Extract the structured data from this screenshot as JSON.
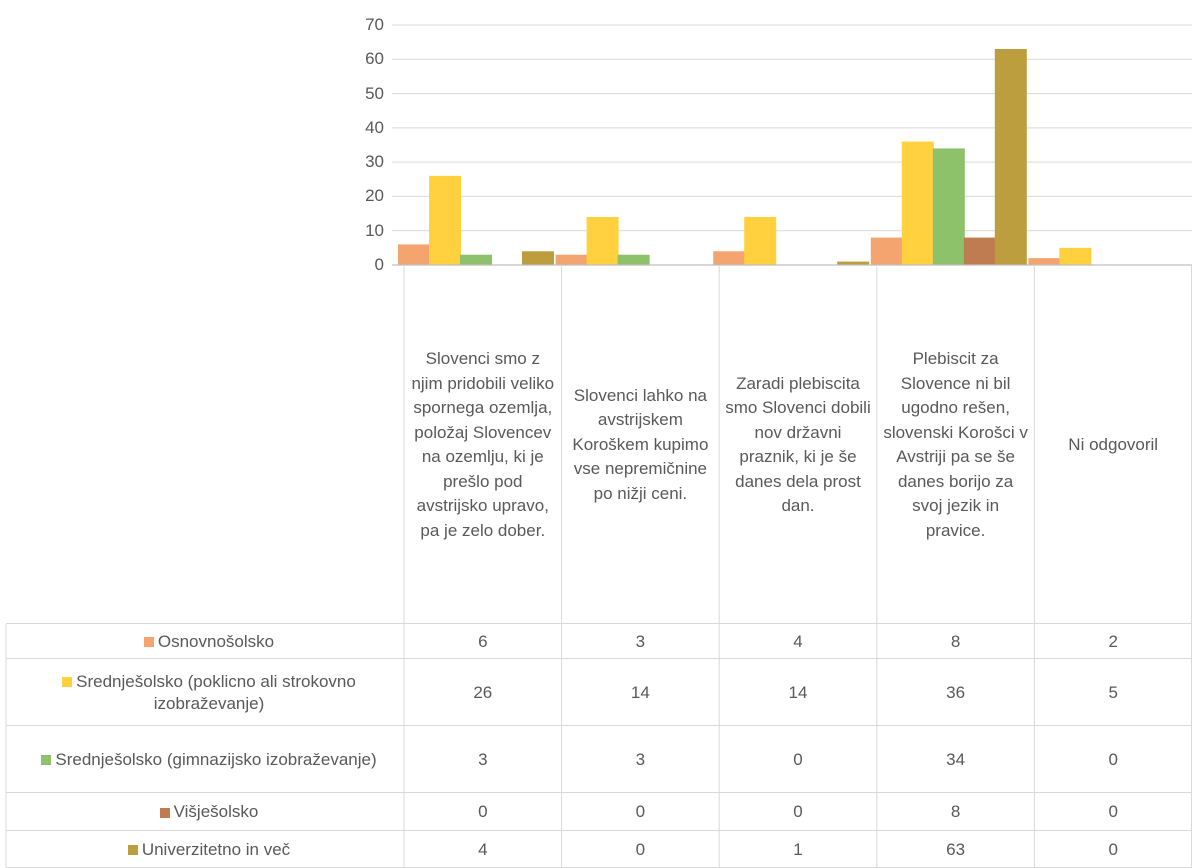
{
  "chart_data": {
    "type": "bar",
    "title": "",
    "xlabel": "",
    "ylabel": "",
    "ylim": [
      0,
      70
    ],
    "yticks": [
      0,
      10,
      20,
      30,
      40,
      50,
      60,
      70
    ],
    "grid": true,
    "legend": "table-left",
    "categories": [
      "Slovenci smo z njim pridobili veliko spornega ozemlja, položaj Slovencev na ozemlju, ki je prešlo pod avstrijsko upravo, pa je zelo dober.",
      "Slovenci lahko na avstrijskem Koroškem kupimo vse nepremičnine po nižji ceni.",
      "Zaradi plebiscita smo Slovenci dobili nov državni praznik, ki je še danes dela prost dan.",
      "Plebiscit za Slovence ni bil ugodno rešen, slovenski Korošci v Avstriji pa se še danes borijo za svoj jezik in pravice.",
      "Ni odgovoril"
    ],
    "series": [
      {
        "name": "Osnovnošolsko",
        "color": "#F4A46E",
        "values": [
          6,
          3,
          4,
          8,
          2
        ]
      },
      {
        "name": "Srednješolsko (poklicno ali strokovno izobraževanje)",
        "color": "#FFD13F",
        "values": [
          26,
          14,
          14,
          36,
          5
        ]
      },
      {
        "name": "Srednješolsko (gimnazijsko izobraževanje)",
        "color": "#8EC26A",
        "values": [
          3,
          3,
          0,
          34,
          0
        ]
      },
      {
        "name": "Višješolsko",
        "color": "#BF7C50",
        "values": [
          0,
          0,
          0,
          8,
          0
        ]
      },
      {
        "name": "Univerzitetno in več",
        "color": "#BC9E3E",
        "values": [
          4,
          0,
          1,
          63,
          0
        ]
      }
    ]
  }
}
